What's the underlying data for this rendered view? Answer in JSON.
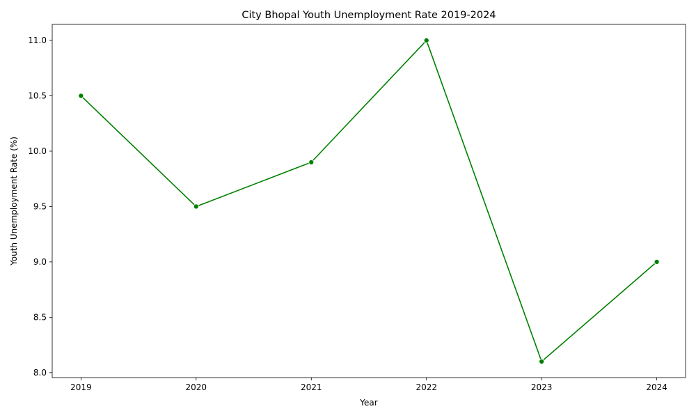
{
  "chart_data": {
    "type": "line",
    "title": "City Bhopal Youth Unemployment Rate 2019-2024",
    "xlabel": "Year",
    "ylabel": "Youth Unemployment Rate (%)",
    "x": [
      2019,
      2020,
      2021,
      2022,
      2023,
      2024
    ],
    "series": [
      {
        "values": [
          10.5,
          9.5,
          9.9,
          11.0,
          8.1,
          9.0
        ]
      }
    ],
    "xlim": [
      2018.75,
      2024.25
    ],
    "ylim": [
      7.955,
      11.145
    ],
    "x_ticks": [
      "2019",
      "2020",
      "2021",
      "2022",
      "2023",
      "2024"
    ],
    "y_ticks": [
      "8.0",
      "8.5",
      "9.0",
      "9.5",
      "10.0",
      "10.5",
      "11.0"
    ],
    "grid": false,
    "marker": "circle",
    "line_color": "#008000",
    "axis_color": "#000000"
  }
}
